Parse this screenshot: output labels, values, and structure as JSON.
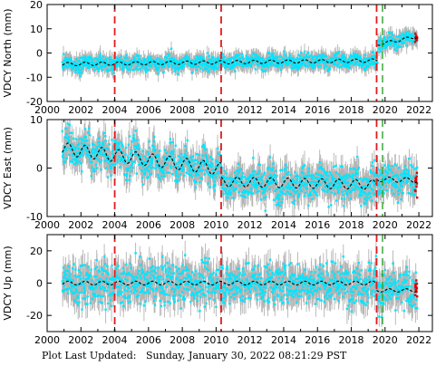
{
  "footer": {
    "label": "Plot Last Updated:",
    "timestamp": "Sunday, January 30, 2022 08:21:29 PST"
  },
  "colors": {
    "error_bars": "#b4b4b4",
    "points": "#00e5ff",
    "model": "#000000",
    "equipment_change": "#e41a1c",
    "event": "#2ca02c",
    "recent_points": "#e00000"
  },
  "chart_data": [
    {
      "type": "scatter",
      "station": "VDCY",
      "component": "North",
      "ylabel": "VDCY North (mm)",
      "xlim": [
        2000,
        2022.8
      ],
      "ylim": [
        -20,
        20
      ],
      "yticks": [
        -20,
        -10,
        0,
        10,
        20
      ],
      "xticks": [
        2000,
        2002,
        2004,
        2006,
        2008,
        2010,
        2012,
        2014,
        2016,
        2018,
        2020,
        2022
      ],
      "data_start": 2000.9,
      "data_end": 2021.9,
      "scatter_sd": 1.5,
      "error_bar_half_width": 3,
      "model": {
        "segments": [
          {
            "start": 2000.9,
            "end": 2019.55,
            "offset": -4.6,
            "trend": 0.08,
            "seasonal_amp": 0.7
          },
          {
            "start": 2019.55,
            "end": 2021.9,
            "offset": 3.5,
            "trend": 1.4,
            "seasonal_amp": 0.6
          }
        ]
      },
      "red_lines": [
        2004.0,
        2010.3,
        2019.5
      ],
      "green_lines": [
        2019.85
      ],
      "grid": false
    },
    {
      "type": "scatter",
      "station": "VDCY",
      "component": "East",
      "ylabel": "VDCY East (mm)",
      "xlim": [
        2000,
        2022.8
      ],
      "ylim": [
        -10,
        10
      ],
      "yticks": [
        -10,
        0,
        10
      ],
      "xticks": [
        2000,
        2002,
        2004,
        2006,
        2008,
        2010,
        2012,
        2014,
        2016,
        2018,
        2020,
        2022
      ],
      "data_start": 2000.9,
      "data_end": 2021.9,
      "scatter_sd": 1.8,
      "error_bar_half_width": 2.5,
      "model": {
        "segments": [
          {
            "start": 2000.9,
            "end": 2010.3,
            "offset": 4.0,
            "trend": -0.45,
            "seasonal_amp": 1.3
          },
          {
            "start": 2010.3,
            "end": 2019.5,
            "offset": -2.8,
            "trend": -0.07,
            "seasonal_amp": 1.0
          },
          {
            "start": 2019.5,
            "end": 2021.9,
            "offset": -2.3,
            "trend": -0.1,
            "seasonal_amp": 0.5
          }
        ]
      },
      "red_lines": [
        2004.0,
        2010.3,
        2019.5
      ],
      "green_lines": [
        2019.85
      ],
      "grid": false
    },
    {
      "type": "scatter",
      "station": "VDCY",
      "component": "Up",
      "ylabel": "VDCY Up (mm)",
      "xlim": [
        2000,
        2022.8
      ],
      "ylim": [
        -30,
        30
      ],
      "yticks": [
        -20,
        0,
        20
      ],
      "xticks": [
        2000,
        2002,
        2004,
        2006,
        2008,
        2010,
        2012,
        2014,
        2016,
        2018,
        2020,
        2022
      ],
      "xticklabels": [
        "2000",
        "2002",
        "2004",
        "2006",
        "2008",
        "2010",
        "2012",
        "2014",
        "2016",
        "2018",
        "2020",
        "2022"
      ],
      "data_start": 2000.9,
      "data_end": 2021.9,
      "scatter_sd": 6.5,
      "error_bar_half_width": 8,
      "model": {
        "segments": [
          {
            "start": 2000.9,
            "end": 2019.5,
            "offset": 0.0,
            "trend": 0.0,
            "seasonal_amp": 1.2
          },
          {
            "start": 2019.5,
            "end": 2021.9,
            "offset": -4.5,
            "trend": 0.0,
            "seasonal_amp": 1.0
          }
        ]
      },
      "red_lines": [
        2004.0,
        2010.3,
        2019.5
      ],
      "green_lines": [
        2019.85
      ],
      "grid": false
    }
  ]
}
